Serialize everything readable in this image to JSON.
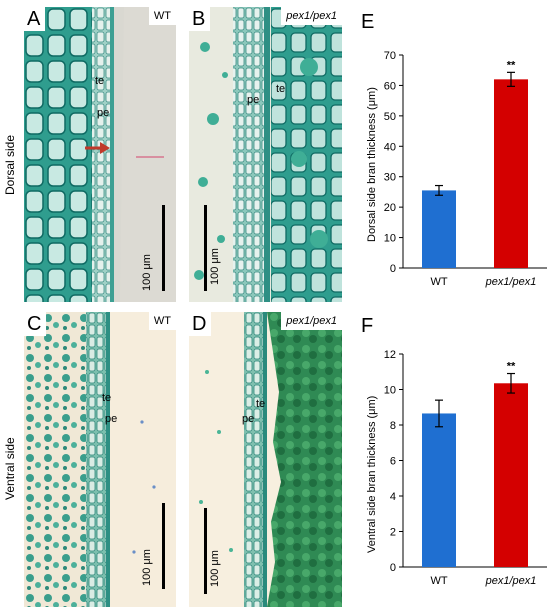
{
  "rows": {
    "top": "Dorsal side",
    "bottom": "Ventral side"
  },
  "panels": {
    "A": {
      "letter": "A",
      "genotype": "WT",
      "labels": [
        "te",
        "pe"
      ],
      "scale_bar": "100 μm"
    },
    "B": {
      "letter": "B",
      "genotype": "pex1/pex1",
      "labels": [
        "pe",
        "te"
      ],
      "scale_bar": "100 μm"
    },
    "C": {
      "letter": "C",
      "genotype": "WT",
      "labels": [
        "te",
        "pe"
      ],
      "scale_bar": "100 μm"
    },
    "D": {
      "letter": "D",
      "genotype": "pex1/pex1",
      "labels": [
        "te",
        "pe"
      ],
      "scale_bar": "100 μm"
    }
  },
  "chart_data": [
    {
      "panel": "E",
      "type": "bar",
      "categories": [
        "WT",
        "pex1/pex1"
      ],
      "values": [
        25.5,
        62
      ],
      "errors": [
        1.6,
        2.3
      ],
      "significance": [
        "",
        "**"
      ],
      "ylabel": "Dorsal side bran thickness (μm)",
      "ylim": [
        0,
        70
      ],
      "yticks": [
        "0",
        "10",
        "20",
        "30",
        "40",
        "50",
        "60",
        "70"
      ],
      "bar_colors": [
        "#1f6fd1",
        "#d40000"
      ],
      "grid": false
    },
    {
      "panel": "F",
      "type": "bar",
      "categories": [
        "WT",
        "pex1/pex1"
      ],
      "values": [
        8.65,
        10.35
      ],
      "errors": [
        0.75,
        0.55
      ],
      "significance": [
        "",
        "**"
      ],
      "ylabel": "Ventral side bran thickness (μm)",
      "ylim": [
        0,
        12
      ],
      "yticks": [
        "0",
        "2",
        "4",
        "6",
        "8",
        "10",
        "12"
      ],
      "bar_colors": [
        "#1f6fd1",
        "#d40000"
      ],
      "grid": false
    }
  ]
}
